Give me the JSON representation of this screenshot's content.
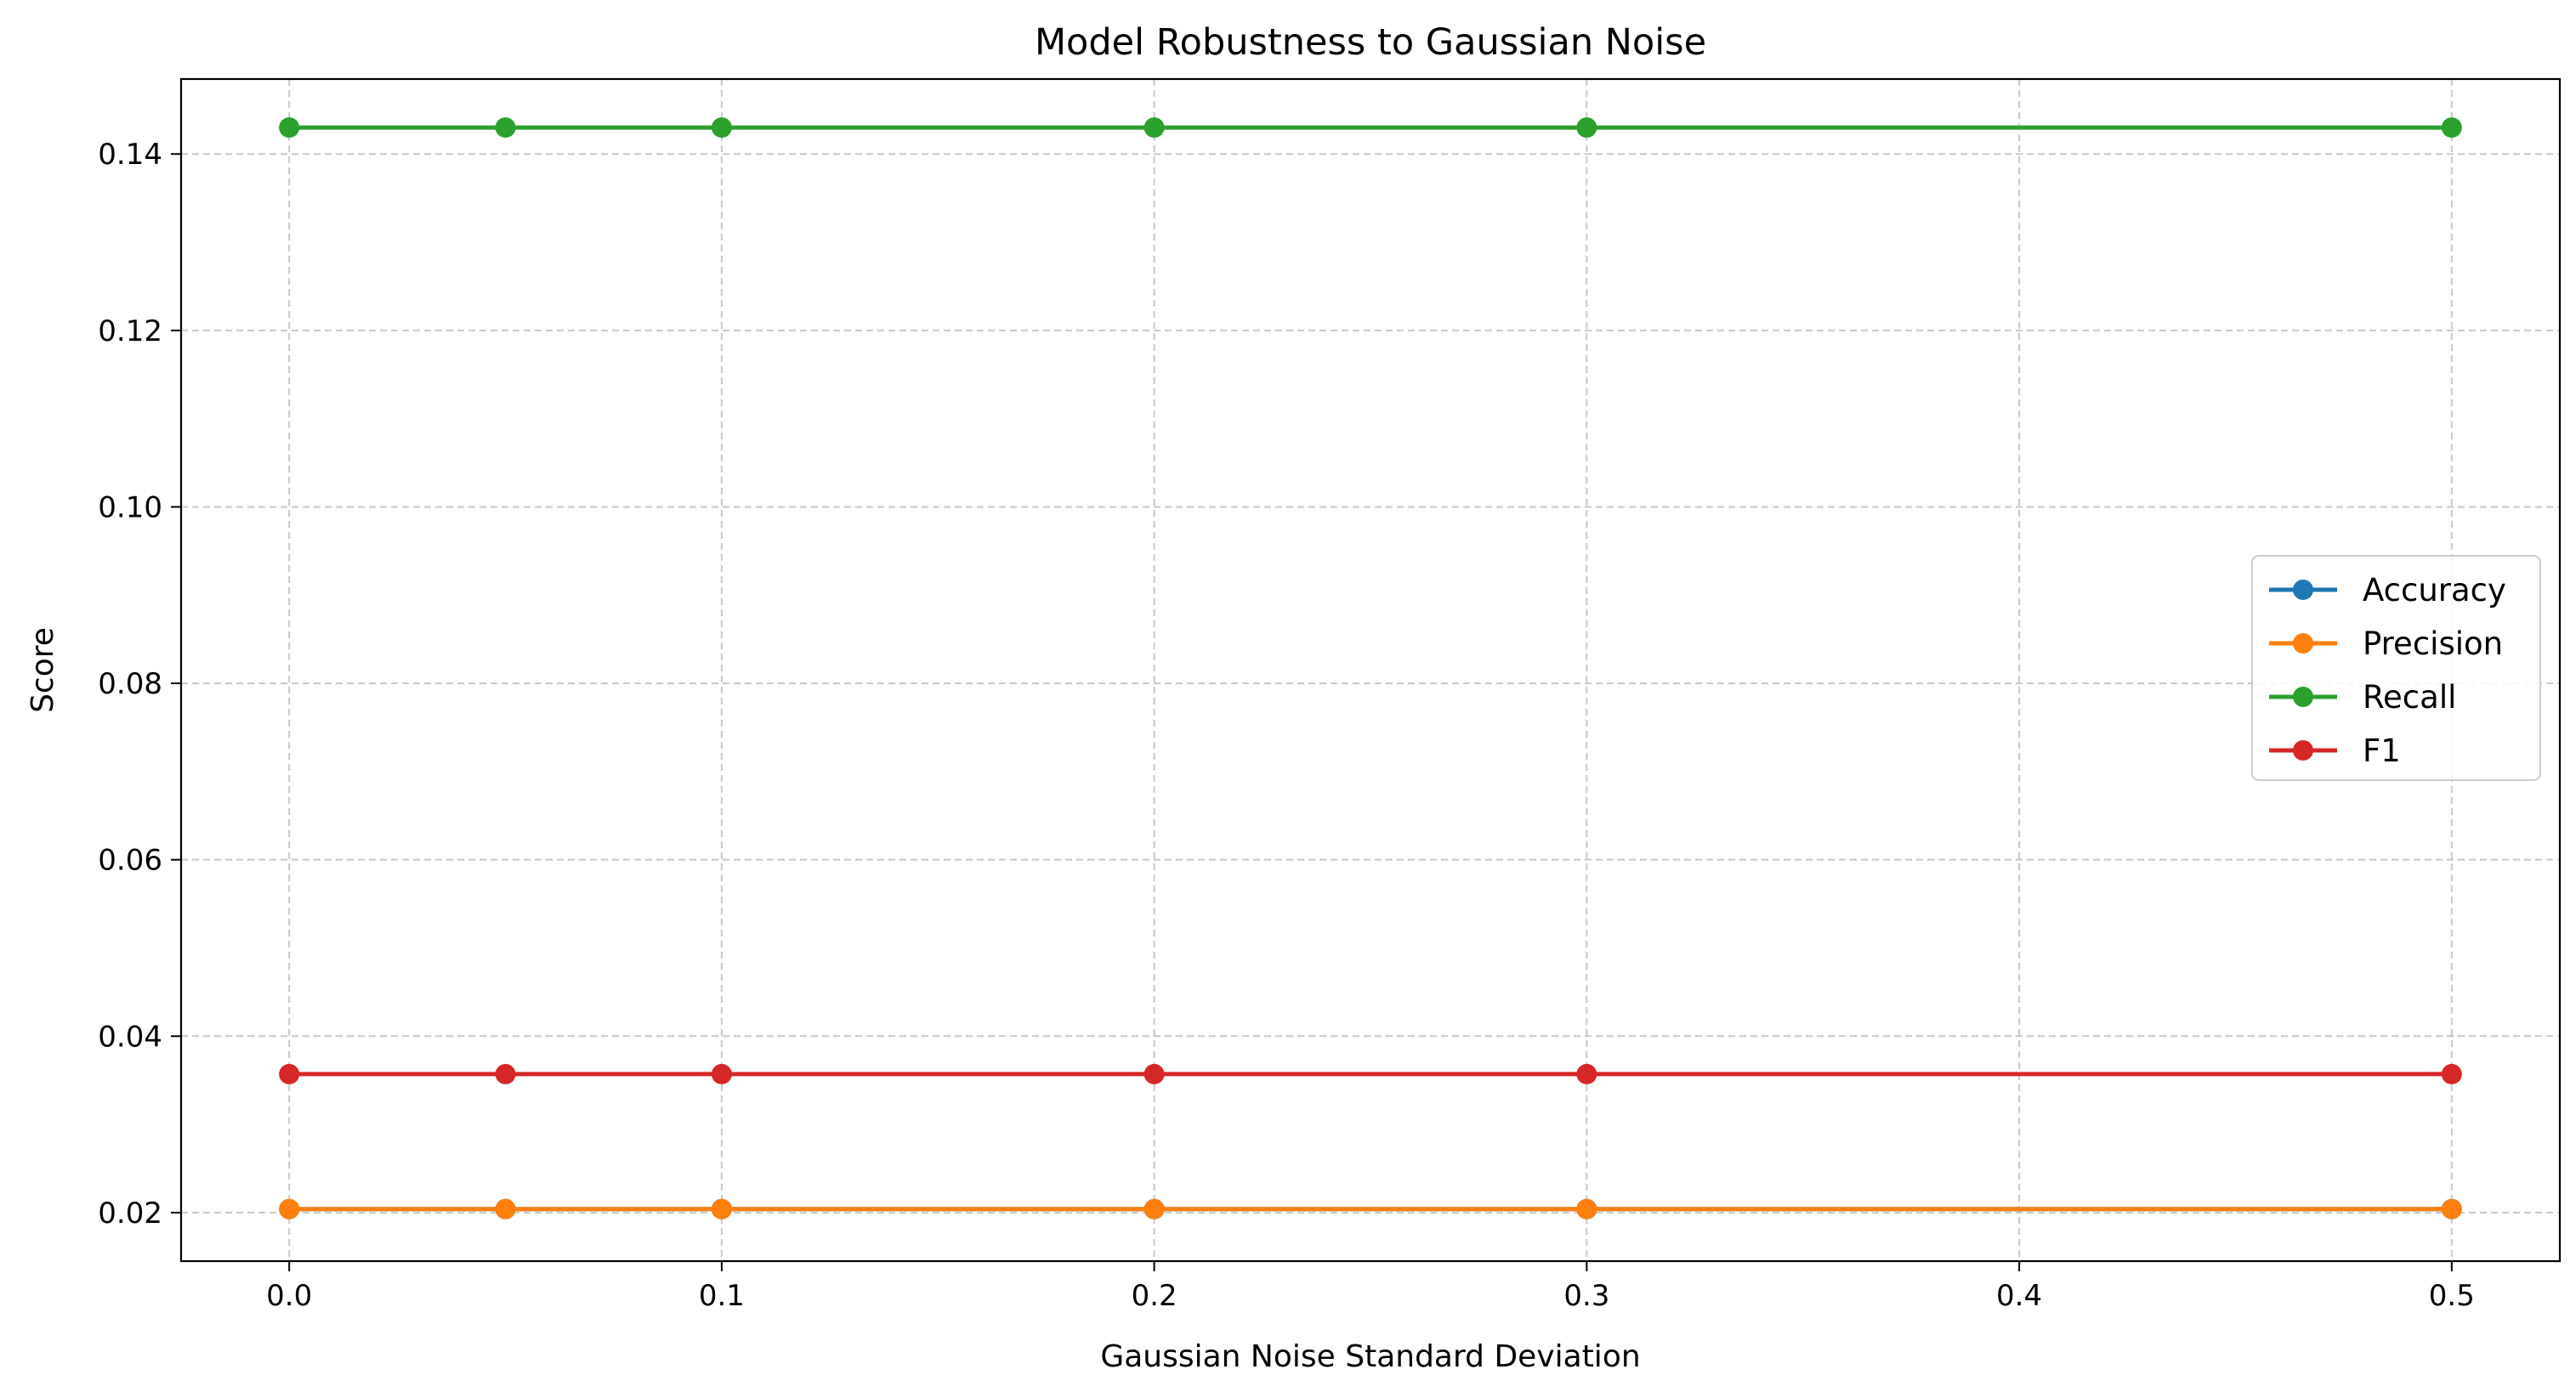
{
  "chart_data": {
    "type": "line",
    "title": "Model Robustness to Gaussian Noise",
    "xlabel": "Gaussian Noise Standard Deviation",
    "ylabel": "Score",
    "x": [
      0.0,
      0.05,
      0.1,
      0.2,
      0.3,
      0.5
    ],
    "xlim": [
      -0.025,
      0.525
    ],
    "ylim": [
      0.0145,
      0.1485
    ],
    "xticks": [
      0.0,
      0.1,
      0.2,
      0.3,
      0.4,
      0.5
    ],
    "xtick_labels": [
      "0.0",
      "0.1",
      "0.2",
      "0.3",
      "0.4",
      "0.5"
    ],
    "yticks": [
      0.02,
      0.04,
      0.06,
      0.08,
      0.1,
      0.12,
      0.14
    ],
    "ytick_labels": [
      "0.02",
      "0.04",
      "0.06",
      "0.08",
      "0.10",
      "0.12",
      "0.14"
    ],
    "grid": true,
    "legend_position": "center-right",
    "series": [
      {
        "name": "Accuracy",
        "color": "#1f77b4",
        "values": [
          0.0204,
          0.0204,
          0.0204,
          0.0204,
          0.0204,
          0.0204
        ]
      },
      {
        "name": "Precision",
        "color": "#ff7f0e",
        "values": [
          0.0204,
          0.0204,
          0.0204,
          0.0204,
          0.0204,
          0.0204
        ]
      },
      {
        "name": "Recall",
        "color": "#2ca02c",
        "values": [
          0.143,
          0.143,
          0.143,
          0.143,
          0.143,
          0.143
        ]
      },
      {
        "name": "F1",
        "color": "#d62728",
        "values": [
          0.0357,
          0.0357,
          0.0357,
          0.0357,
          0.0357,
          0.0357
        ]
      }
    ]
  }
}
